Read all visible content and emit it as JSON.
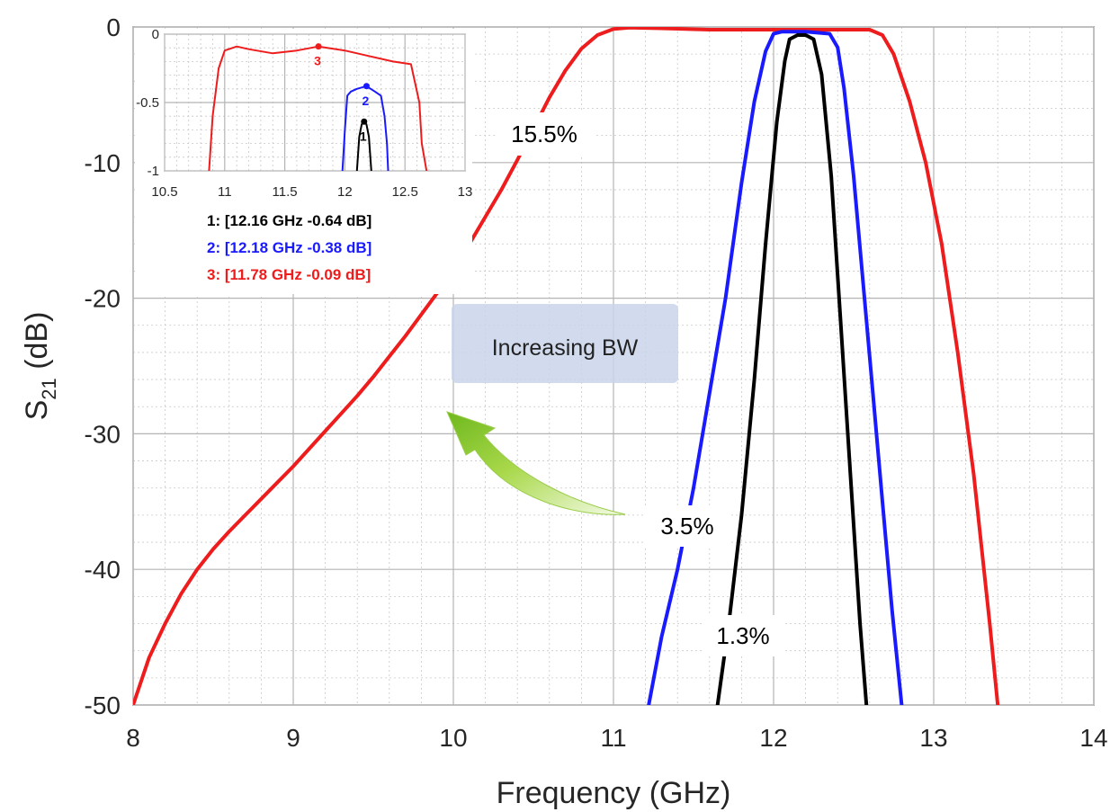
{
  "chart_data": [
    {
      "type": "line",
      "xlabel": "Frequency (GHz)",
      "ylabel": "S21 (dB)",
      "ylabel_main": "S",
      "ylabel_sub": "21",
      "ylabel_rest": " (dB)",
      "xlim": [
        8,
        14
      ],
      "ylim": [
        -50,
        0
      ],
      "xticks": [
        "8",
        "9",
        "10",
        "11",
        "12",
        "13",
        "14"
      ],
      "yticks": [
        "0",
        "-10",
        "-20",
        "-30",
        "-40",
        "-50"
      ],
      "grid": true,
      "series": [
        {
          "name": "15.5%",
          "color": "#ee1c1c",
          "x": [
            8.0,
            8.1,
            8.2,
            8.3,
            8.4,
            8.5,
            8.6,
            8.7,
            8.8,
            8.9,
            9.0,
            9.1,
            9.2,
            9.3,
            9.4,
            9.5,
            9.6,
            9.7,
            9.8,
            9.9,
            10.0,
            10.1,
            10.2,
            10.3,
            10.4,
            10.5,
            10.6,
            10.7,
            10.8,
            10.9,
            11.0,
            11.1,
            11.3,
            11.6,
            12.0,
            12.3,
            12.6,
            12.68,
            12.75,
            12.85,
            12.95,
            13.05,
            13.15,
            13.25,
            13.35,
            13.4
          ],
          "y": [
            -50,
            -46.5,
            -44.0,
            -41.8,
            -40.0,
            -38.5,
            -37.2,
            -36.0,
            -34.8,
            -33.6,
            -32.4,
            -31.1,
            -29.8,
            -28.5,
            -27.2,
            -25.8,
            -24.3,
            -22.8,
            -21.2,
            -19.6,
            -18.0,
            -16.0,
            -14.0,
            -12.0,
            -9.8,
            -7.5,
            -5.2,
            -3.2,
            -1.6,
            -0.6,
            -0.15,
            -0.05,
            -0.1,
            -0.2,
            -0.2,
            -0.2,
            -0.2,
            -0.6,
            -2.0,
            -5.5,
            -10.0,
            -16.0,
            -24.0,
            -33.0,
            -44.0,
            -50.0
          ]
        },
        {
          "name": "3.5%",
          "color": "#1a1aff",
          "x": [
            11.22,
            11.3,
            11.4,
            11.5,
            11.6,
            11.7,
            11.8,
            11.88,
            11.95,
            12.0,
            12.05,
            12.2,
            12.35,
            12.4,
            12.44,
            12.5,
            12.56,
            12.62,
            12.68,
            12.74,
            12.8
          ],
          "y": [
            -50,
            -45.0,
            -40.0,
            -34.0,
            -27.0,
            -20.0,
            -11.5,
            -5.5,
            -1.8,
            -0.5,
            -0.35,
            -0.35,
            -0.5,
            -1.5,
            -4.5,
            -11.0,
            -19.0,
            -27.0,
            -35.0,
            -43.0,
            -50.0
          ]
        },
        {
          "name": "1.3%",
          "color": "#000000",
          "x": [
            11.65,
            11.72,
            11.8,
            11.88,
            11.95,
            12.02,
            12.07,
            12.1,
            12.15,
            12.2,
            12.25,
            12.3,
            12.36,
            12.42,
            12.48,
            12.54,
            12.58
          ],
          "y": [
            -50,
            -44.0,
            -36.0,
            -26.0,
            -16.0,
            -7.0,
            -2.5,
            -0.9,
            -0.6,
            -0.6,
            -0.9,
            -3.5,
            -11.0,
            -22.0,
            -33.0,
            -44.0,
            -50.0
          ]
        }
      ],
      "annotations": {
        "pct_red": "15.5%",
        "pct_blue": "3.5%",
        "pct_black": "1.3%",
        "bw_text": "Increasing BW"
      }
    },
    {
      "type": "line",
      "xlim": [
        10.5,
        13
      ],
      "ylim": [
        -1,
        0
      ],
      "xticks": [
        "10.5",
        "11",
        "11.5",
        "12",
        "12.5",
        "13"
      ],
      "yticks": [
        "0",
        "-0.5",
        "-1"
      ],
      "grid": true,
      "series": [
        {
          "color": "#ee1c1c",
          "x": [
            10.87,
            10.9,
            10.95,
            11.0,
            11.1,
            11.2,
            11.4,
            11.6,
            11.78,
            12.0,
            12.2,
            12.4,
            12.55,
            12.62,
            12.64,
            12.68
          ],
          "y": [
            -1.0,
            -0.6,
            -0.25,
            -0.12,
            -0.09,
            -0.11,
            -0.14,
            -0.12,
            -0.09,
            -0.12,
            -0.16,
            -0.2,
            -0.22,
            -0.5,
            -0.8,
            -1.0
          ]
        },
        {
          "color": "#1a1aff",
          "x": [
            11.98,
            12.0,
            12.02,
            12.05,
            12.1,
            12.18,
            12.25,
            12.3,
            12.33,
            12.35,
            12.36
          ],
          "y": [
            -1.0,
            -0.7,
            -0.45,
            -0.42,
            -0.4,
            -0.38,
            -0.42,
            -0.45,
            -0.6,
            -0.8,
            -1.0
          ]
        },
        {
          "color": "#000000",
          "x": [
            12.1,
            12.12,
            12.14,
            12.16,
            12.18,
            12.2,
            12.22
          ],
          "y": [
            -1.0,
            -0.75,
            -0.66,
            -0.64,
            -0.66,
            -0.75,
            -1.0
          ]
        }
      ],
      "markers": [
        {
          "label": "1",
          "x": 12.16,
          "y": -0.64,
          "color": "#000000"
        },
        {
          "label": "2",
          "x": 12.18,
          "y": -0.38,
          "color": "#1a1aff"
        },
        {
          "label": "3",
          "x": 11.78,
          "y": -0.09,
          "color": "#ee1c1c"
        }
      ],
      "legend": [
        {
          "text": "1: [12.16 GHz -0.64 dB]",
          "color": "#000000"
        },
        {
          "text": "2: [12.18 GHz -0.38 dB]",
          "color": "#1a1aff"
        },
        {
          "text": "3: [11.78 GHz -0.09 dB]",
          "color": "#ee1c1c"
        }
      ]
    }
  ]
}
